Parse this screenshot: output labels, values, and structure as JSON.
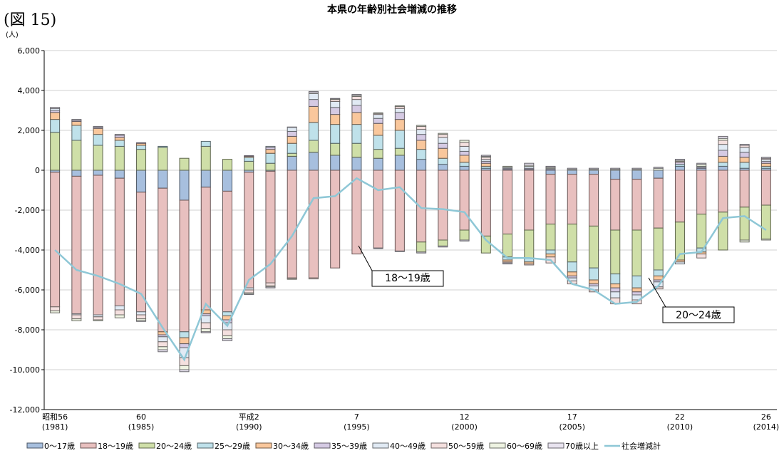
{
  "chart_data": {
    "type": "bar",
    "stacked": true,
    "figure_label": "(図 15)",
    "title": "本県の年齢別社会増減の推移",
    "y_unit": "(人)",
    "annotations": [
      "18～19歳",
      "20～24歳"
    ],
    "categories": [
      "昭和56\n(1981)",
      null,
      null,
      null,
      "60\n(1985)",
      null,
      null,
      null,
      null,
      "平成2\n(1990)",
      null,
      null,
      null,
      null,
      "7\n(1995)",
      null,
      null,
      null,
      null,
      "12\n(2000)",
      null,
      null,
      null,
      null,
      "17\n(2005)",
      null,
      null,
      null,
      null,
      "22\n(2010)",
      null,
      null,
      null,
      "26\n(2014)"
    ],
    "ylim": [
      -12000,
      6000
    ],
    "yticks": [
      {
        "value": -12000,
        "label": "-12,000"
      },
      {
        "value": -10000,
        "label": "-10,000"
      },
      {
        "value": -8000,
        "label": "-8,000"
      },
      {
        "value": -6000,
        "label": "-6,000"
      },
      {
        "value": -4000,
        "label": "-4,000"
      },
      {
        "value": -2000,
        "label": "-2,000"
      },
      0,
      {
        "value": 2000,
        "label": "2,000"
      },
      {
        "value": 4000,
        "label": "4,000"
      },
      {
        "value": 6000,
        "label": "6,000"
      }
    ],
    "grid": true,
    "legend": "bottom",
    "series": [
      {
        "name": "0～17歳",
        "color": "#a7bfde",
        "values": [
          -100,
          -300,
          -250,
          -400,
          -1100,
          -900,
          -1500,
          -850,
          -1050,
          -100,
          -50,
          700,
          900,
          750,
          650,
          600,
          750,
          550,
          300,
          200,
          100,
          50,
          50,
          -200,
          -200,
          -200,
          -450,
          -450,
          -400,
          200,
          100,
          200,
          100,
          100
        ]
      },
      {
        "name": "18～19歳",
        "color": "#e8c0bf",
        "values": [
          -6750,
          -6900,
          -7000,
          -6400,
          -6000,
          -7200,
          -6600,
          -6150,
          -6050,
          -5800,
          -5600,
          -5400,
          -5400,
          -4900,
          -4200,
          -3900,
          -4050,
          -3600,
          -3500,
          -3000,
          -3300,
          -3200,
          -3000,
          -2500,
          -2500,
          -2600,
          -2550,
          -2550,
          -2500,
          -2600,
          -2200,
          -2100,
          -1850,
          -1750
        ]
      },
      {
        "name": "20～24歳",
        "color": "#cfdfa8",
        "values": [
          1900,
          1500,
          1250,
          1200,
          1050,
          1150,
          600,
          1200,
          550,
          450,
          350,
          150,
          600,
          600,
          700,
          450,
          350,
          -500,
          -300,
          -500,
          -850,
          -1150,
          -1400,
          -1300,
          -1900,
          -2100,
          -2200,
          -2300,
          -2100,
          -1900,
          -1700,
          -1900,
          -1650,
          -1700
        ]
      },
      {
        "name": "25～29歳",
        "color": "#bfe1ea",
        "values": [
          650,
          750,
          550,
          300,
          200,
          50,
          -300,
          250,
          -200,
          200,
          500,
          500,
          900,
          950,
          950,
          700,
          900,
          500,
          300,
          200,
          100,
          -150,
          -200,
          -200,
          -500,
          -600,
          -500,
          -600,
          -300,
          100,
          -200,
          200,
          300,
          100
        ]
      },
      {
        "name": "30～34歳",
        "color": "#f9c79c",
        "values": [
          350,
          200,
          300,
          150,
          100,
          -150,
          -300,
          -200,
          -200,
          50,
          200,
          350,
          800,
          500,
          600,
          600,
          550,
          450,
          500,
          350,
          150,
          -100,
          -100,
          -150,
          -200,
          -200,
          -200,
          -200,
          -200,
          -100,
          -100,
          300,
          250,
          150
        ]
      },
      {
        "name": "35～39歳",
        "color": "#d5cae3",
        "values": [
          100,
          50,
          50,
          100,
          30,
          -100,
          -200,
          -100,
          -150,
          30,
          100,
          250,
          350,
          350,
          350,
          250,
          350,
          300,
          250,
          200,
          100,
          50,
          50,
          50,
          -100,
          -100,
          -200,
          -150,
          -100,
          100,
          50,
          300,
          250,
          100
        ]
      },
      {
        "name": "40～49歳",
        "color": "#e1eaf4",
        "values": [
          100,
          -50,
          -100,
          -200,
          -150,
          -250,
          -500,
          -350,
          -350,
          -100,
          50,
          200,
          300,
          300,
          300,
          200,
          200,
          250,
          300,
          250,
          100,
          50,
          100,
          50,
          -150,
          -200,
          -300,
          -250,
          -250,
          -100,
          50,
          300,
          250,
          100
        ]
      },
      {
        "name": "50～59歳",
        "color": "#f4e0df",
        "values": [
          -200,
          -200,
          -150,
          -250,
          -200,
          -250,
          -400,
          -300,
          -300,
          -150,
          -150,
          -50,
          -50,
          100,
          150,
          50,
          100,
          150,
          150,
          200,
          100,
          -50,
          -50,
          -300,
          -150,
          -100,
          -300,
          -200,
          -100,
          50,
          -200,
          200,
          100,
          50
        ]
      },
      {
        "name": "60～69歳",
        "color": "#eef3e2",
        "values": [
          -100,
          -100,
          -50,
          -150,
          -100,
          -150,
          -200,
          -150,
          -150,
          -60,
          -50,
          -20,
          30,
          30,
          50,
          30,
          30,
          50,
          50,
          100,
          50,
          50,
          50,
          50,
          50,
          50,
          50,
          50,
          100,
          50,
          100,
          100,
          -100,
          -50
        ]
      },
      {
        "name": "70歳以上",
        "color": "#e8e3ef",
        "values": [
          50,
          50,
          50,
          50,
          -30,
          -100,
          -100,
          -50,
          -100,
          -20,
          -50,
          20,
          70,
          20,
          50,
          -30,
          -30,
          -50,
          -50,
          -50,
          50,
          -50,
          100,
          50,
          50,
          50,
          50,
          50,
          50,
          50,
          50,
          100,
          50,
          50
        ]
      },
      {
        "name": "社会増減計",
        "type": "line",
        "color": "#8ec7d6",
        "values": [
          -4000,
          -5000,
          -5300,
          -5700,
          -6200,
          -7900,
          -9500,
          -6700,
          -7800,
          -5500,
          -4700,
          -3300,
          -1400,
          -1300,
          -400,
          -1000,
          -850,
          -1900,
          -1950,
          -2100,
          -3500,
          -4400,
          -4400,
          -4500,
          -5700,
          -6000,
          -6700,
          -6600,
          -5800,
          -4200,
          -4100,
          -2400,
          -2300,
          -3000
        ]
      }
    ]
  }
}
